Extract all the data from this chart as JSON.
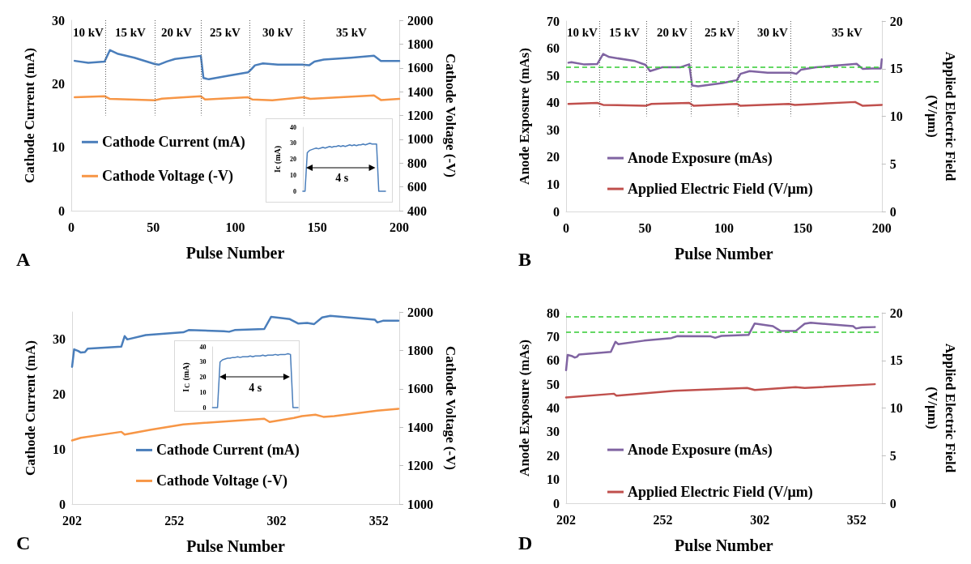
{
  "chart_data": [
    {
      "type": "line",
      "xlabel": "Pulse Number",
      "ylabel": "Cathode Current (mA)",
      "y2label": "Cathode Voltage (-V)",
      "xlim": [
        0,
        200
      ],
      "xticks": [
        0,
        50,
        100,
        150,
        200
      ],
      "ylim": [
        0,
        30
      ],
      "yticks": [
        0,
        10,
        20,
        30
      ],
      "y2lim": [
        400,
        2000
      ],
      "y2ticks": [
        400,
        600,
        800,
        1000,
        1200,
        1400,
        1600,
        1800,
        2000
      ],
      "legend": "left",
      "marker": "none",
      "line_style": "solid",
      "series": [
        {
          "name": "Cathode Current (mA)",
          "color": "#4a7ebb",
          "x": [
            2.1,
            10.4,
            20.3,
            23.6,
            28.6,
            38.5,
            50.9,
            53.3,
            58.3,
            63.3,
            79,
            80.6,
            83.9,
            96.3,
            107.8,
            109.5,
            112,
            116.9,
            126,
            140.9,
            145,
            148.3,
            154,
            170.6,
            184.6,
            188.8,
            200
          ],
          "values": [
            23.6,
            23.3,
            23.5,
            25.3,
            24.7,
            24.1,
            23.1,
            23.0,
            23.5,
            23.9,
            24.4,
            20.9,
            20.7,
            21.3,
            21.8,
            22.2,
            22.9,
            23.2,
            23.0,
            23.0,
            22.9,
            23.5,
            23.8,
            24.1,
            24.4,
            23.6,
            23.6
          ]
        },
        {
          "name": "Cathode Voltage (-V)",
          "color": "#f79646",
          "axis": "y2",
          "x": [
            2.1,
            20.3,
            23.6,
            50.9,
            55.3,
            79,
            81.6,
            107.8,
            110.3,
            122.6,
            141.7,
            145.8,
            184.6,
            188.8,
            200
          ],
          "values": [
            1353,
            1362,
            1339,
            1328,
            1341,
            1362,
            1335,
            1353,
            1335,
            1328,
            1353,
            1339,
            1368,
            1330,
            1339
          ]
        }
      ],
      "ref_lines": [
        {
          "axis": "x",
          "value": 21,
          "color": "#595959",
          "line_style": "dotted"
        },
        {
          "axis": "x",
          "value": 51,
          "color": "#595959",
          "line_style": "dotted"
        },
        {
          "axis": "x",
          "value": 79,
          "color": "#595959",
          "line_style": "dotted"
        },
        {
          "axis": "x",
          "value": 109,
          "color": "#595959",
          "line_style": "dotted"
        },
        {
          "axis": "x",
          "value": 142,
          "color": "#595959",
          "line_style": "dotted"
        }
      ],
      "annotations": [
        "10 kV",
        "15 kV",
        "20 kV",
        "25 kV",
        "30 kV",
        "35 kV",
        "A"
      ]
    },
    {
      "type": "line",
      "ylabel": "Ic (mA)",
      "categories": [
        null,
        null,
        null,
        null,
        null,
        null,
        null,
        null,
        null,
        null,
        null,
        null,
        null,
        null,
        null,
        null,
        null,
        null,
        null,
        null,
        null,
        null,
        null,
        null,
        null,
        null,
        null,
        null,
        null,
        null,
        null,
        null,
        null,
        null,
        null,
        null,
        null,
        null
      ],
      "ylim": [
        0,
        40
      ],
      "yticks": [
        0,
        10,
        20,
        30,
        40
      ],
      "tick_labels": "y",
      "marker": "none",
      "series": [
        {
          "color": "#4a7ebb",
          "values": [
            0,
            0,
            24,
            25.5,
            26,
            26.5,
            27,
            26.5,
            27,
            27.5,
            27,
            27.5,
            28,
            27.5,
            28,
            28,
            28.5,
            28,
            28.5,
            28,
            28.5,
            29,
            28.5,
            29,
            28.5,
            29,
            29,
            29.5,
            29,
            29.5,
            30,
            29.5,
            29.5,
            29.5,
            0,
            0,
            0,
            0
          ]
        }
      ],
      "annotations": [
        "4 s"
      ]
    },
    {
      "type": "line",
      "xlabel": "Pulse Number",
      "ylabel": "Anode Exposure (mAs)",
      "y2label": "Applied Electric Field (V/µm)",
      "xlim": [
        0,
        200
      ],
      "xticks": [
        0,
        50,
        100,
        150,
        200
      ],
      "ylim": [
        0,
        70
      ],
      "yticks": [
        0,
        10,
        20,
        30,
        40,
        50,
        60,
        70
      ],
      "y2lim": [
        0,
        20
      ],
      "y2ticks": [
        0,
        5,
        10,
        15,
        20
      ],
      "legend": "bottom left",
      "marker": "none",
      "line_style": "solid",
      "series": [
        {
          "name": "Anode Exposure (mAs)",
          "color": "#8064a2",
          "x": [
            1.5,
            3.4,
            11.1,
            19.7,
            23.5,
            27.3,
            43.6,
            50.3,
            53.2,
            60.8,
            72.3,
            78,
            79.9,
            83.7,
            99,
            108.2,
            110.5,
            116.3,
            127.7,
            143,
            145.9,
            148.8,
            158.3,
            184.1,
            188,
            193.7,
            199.4,
            200
          ],
          "values": [
            54.7,
            54.9,
            54.1,
            54.2,
            57.9,
            56.8,
            55.3,
            53.9,
            51.6,
            53.0,
            53.0,
            54.1,
            46.3,
            46.0,
            47.2,
            48.3,
            50.6,
            51.6,
            51.0,
            51.0,
            50.6,
            52.1,
            53.0,
            54.3,
            52.4,
            52.6,
            52.6,
            55.9
          ]
        },
        {
          "name": "Applied Electric Field (V/µm)",
          "color": "#c0504d",
          "axis": "y2",
          "x": [
            1.5,
            19.7,
            23.5,
            50.3,
            54.1,
            78,
            80.9,
            108.2,
            110.5,
            141.1,
            144.9,
            183.1,
            188,
            200
          ],
          "values": [
            11.3,
            11.4,
            11.2,
            11.1,
            11.3,
            11.4,
            11.1,
            11.3,
            11.1,
            11.3,
            11.2,
            11.5,
            11.1,
            11.2
          ]
        }
      ],
      "ref_lines": [
        {
          "axis": "x",
          "value": 21,
          "color": "#595959",
          "line_style": "dotted"
        },
        {
          "axis": "x",
          "value": 51,
          "color": "#595959",
          "line_style": "dotted"
        },
        {
          "axis": "x",
          "value": 79,
          "color": "#595959",
          "line_style": "dotted"
        },
        {
          "axis": "x",
          "value": 109,
          "color": "#595959",
          "line_style": "dotted"
        },
        {
          "axis": "x",
          "value": 142,
          "color": "#595959",
          "line_style": "dotted"
        },
        {
          "axis": "y",
          "value": 53,
          "color": "#33cc33",
          "line_style": "dashed"
        },
        {
          "axis": "y",
          "value": 47.7,
          "color": "#33cc33",
          "line_style": "dashed"
        }
      ],
      "annotations": [
        "10 kV",
        "15 kV",
        "20 kV",
        "25 kV",
        "30 kV",
        "35 kV",
        "B"
      ]
    },
    {
      "type": "line",
      "xlabel": "Pulse Number",
      "ylabel": "Cathode Current (mA)",
      "y2label": "Cathode Voltage (-V)",
      "xlim": [
        202,
        362
      ],
      "xticks": [
        202,
        252,
        302,
        352
      ],
      "ylim": [
        0,
        35
      ],
      "yticks": [
        0,
        10,
        20,
        30
      ],
      "y2lim": [
        1000,
        2000
      ],
      "y2ticks": [
        1000,
        1200,
        1400,
        1600,
        1800,
        2000
      ],
      "legend": "bottom",
      "marker": "none",
      "line_style": "solid",
      "series": [
        {
          "name": "Cathode Current (mA)",
          "color": "#4a7ebb",
          "x": [
            202,
            203,
            205,
            206.3,
            208.3,
            209.6,
            226.1,
            227.7,
            229,
            238,
            256.4,
            259,
            276.2,
            278.8,
            281.5,
            296,
            299.3,
            308.5,
            312.5,
            317,
            320.4,
            324.3,
            328.3,
            350,
            351.3,
            354,
            361.6
          ],
          "values": [
            25.0,
            28.2,
            27.9,
            27.6,
            27.7,
            28.3,
            28.7,
            30.6,
            30.0,
            30.8,
            31.3,
            31.7,
            31.5,
            31.4,
            31.7,
            31.9,
            34.1,
            33.7,
            32.9,
            33.0,
            32.8,
            34.0,
            34.3,
            33.6,
            33.1,
            33.4,
            33.4
          ]
        },
        {
          "name": "Cathode Voltage (-V)",
          "color": "#f79646",
          "axis": "y2",
          "x": [
            202,
            206.3,
            226.1,
            227.7,
            240.6,
            256.4,
            296,
            298.6,
            310.5,
            314.4,
            321,
            324.9,
            330.2,
            351.3,
            361.6
          ],
          "values": [
            1331,
            1345,
            1376,
            1362,
            1387,
            1415,
            1444,
            1427,
            1448,
            1458,
            1465,
            1454,
            1458,
            1486,
            1496
          ]
        }
      ],
      "annotations": [
        "C"
      ]
    },
    {
      "type": "line",
      "ylabel": "I$_{C}$ (mA)",
      "categories": [
        null,
        null,
        null,
        null,
        null,
        null,
        null,
        null,
        null,
        null,
        null,
        null,
        null,
        null,
        null,
        null,
        null,
        null,
        null,
        null,
        null,
        null,
        null,
        null,
        null,
        null,
        null,
        null,
        null,
        null,
        null,
        null,
        null,
        null,
        null
      ],
      "ylim": [
        0,
        40
      ],
      "yticks": [
        0,
        10,
        20,
        30,
        40
      ],
      "tick_labels": "y",
      "marker": "none",
      "series": [
        {
          "color": "#4a7ebb",
          "values": [
            0,
            0,
            0,
            30,
            31.5,
            32,
            32.5,
            32.5,
            33,
            33,
            33.5,
            33,
            33.5,
            33.5,
            33.5,
            34,
            33.5,
            34,
            34,
            34,
            34.5,
            34,
            34.5,
            34.5,
            34.5,
            35,
            34.5,
            35,
            35,
            35,
            35.5,
            35,
            0,
            0,
            0
          ]
        }
      ],
      "annotations": [
        "4 s"
      ]
    },
    {
      "type": "line",
      "xlabel": "Pulse Number",
      "ylabel": "Anode Exposure (mAs)",
      "y2label": "Applied Electric Field (V/µm)",
      "xlim": [
        202,
        365
      ],
      "xticks": [
        202,
        252,
        302,
        352
      ],
      "ylim": [
        0,
        80
      ],
      "yticks": [
        0,
        10,
        20,
        30,
        40,
        50,
        60,
        70,
        80
      ],
      "y2lim": [
        0,
        20
      ],
      "y2ticks": [
        0,
        5,
        10,
        15,
        20
      ],
      "legend": "bottom left",
      "marker": "none",
      "line_style": "solid",
      "series": [
        {
          "name": "Anode Exposure (mAs)",
          "color": "#8064a2",
          "x": [
            202,
            202.8,
            204.8,
            206.4,
            207.6,
            208.7,
            225.1,
            227.5,
            229,
            242.3,
            256.4,
            259.5,
            276.7,
            279,
            282.2,
            296.2,
            299.4,
            308.8,
            312.7,
            320.5,
            325.2,
            328.3,
            350.2,
            351.7,
            354.8,
            361.4
          ],
          "values": [
            55.9,
            62.3,
            61.9,
            61.2,
            61.5,
            62.5,
            63.6,
            67.8,
            66.8,
            68.3,
            69.4,
            70.2,
            70.1,
            69.5,
            70.3,
            70.7,
            75.5,
            74.4,
            72.4,
            72.3,
            75.4,
            75.8,
            74.4,
            73.4,
            73.9,
            74.0
          ]
        },
        {
          "name": "Applied Electric Field (V/µm)",
          "color": "#c0504d",
          "axis": "y2",
          "x": [
            202,
            226.7,
            228,
            258,
            295.5,
            299.4,
            320.5,
            325.2,
            361.4
          ],
          "values": [
            11.1,
            11.5,
            11.3,
            11.8,
            12.1,
            11.9,
            12.2,
            12.1,
            12.5
          ]
        }
      ],
      "ref_lines": [
        {
          "axis": "y",
          "value": 78.4,
          "color": "#33cc33",
          "line_style": "dashed"
        },
        {
          "axis": "y",
          "value": 72,
          "color": "#33cc33",
          "line_style": "dashed"
        }
      ],
      "annotations": [
        "D"
      ]
    }
  ]
}
